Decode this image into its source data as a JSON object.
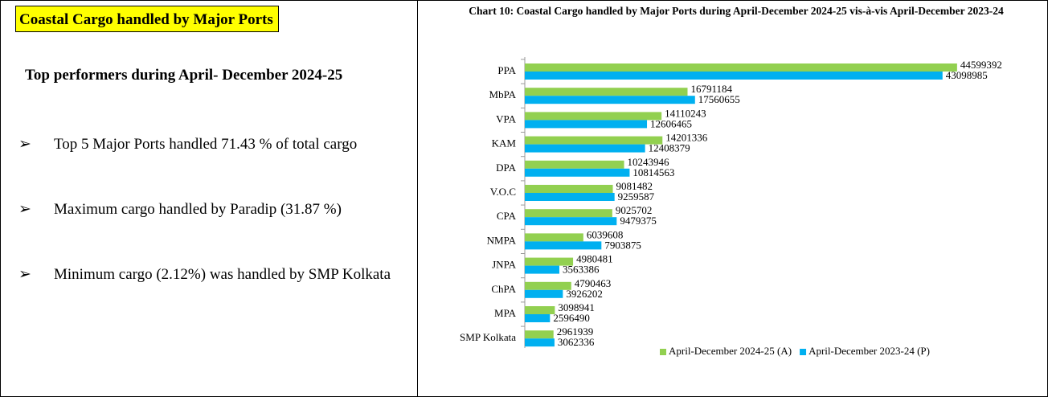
{
  "left": {
    "title": "Coastal Cargo handled by Major Ports",
    "heading": "Top performers during April- December 2024-25",
    "bullets": [
      "Top 5 Major Ports handled 71.43 % of total cargo",
      "Maximum cargo handled by Paradip (31.87 %)",
      "Minimum cargo (2.12%) was handled by SMP Kolkata"
    ]
  },
  "chart_data": {
    "type": "barh",
    "title": "Chart 10: Coastal Cargo handled by Major Ports during April-December 2024-25 vis-à-vis April-December 2023-24",
    "categories": [
      "PPA",
      "MbPA",
      "VPA",
      "KAM",
      "DPA",
      "V.O.C",
      "CPA",
      "NMPA",
      "JNPA",
      "ChPA",
      "MPA",
      "SMP Kolkata"
    ],
    "series": [
      {
        "name": "April-December 2024-25 (A)",
        "color": "#92d050",
        "values": [
          44599392,
          16791184,
          14110243,
          14201336,
          10243946,
          9081482,
          9025702,
          6039608,
          4980481,
          4790463,
          3098941,
          2961939
        ]
      },
      {
        "name": "April-December 2023-24 (P)",
        "color": "#00b0f0",
        "values": [
          43098985,
          17560655,
          12606465,
          12408379,
          10814563,
          9259587,
          9479375,
          7903875,
          3563386,
          3926202,
          2596490,
          3062336
        ]
      }
    ],
    "xlim": [
      0,
      50000000
    ],
    "legend": "bottom-right"
  }
}
